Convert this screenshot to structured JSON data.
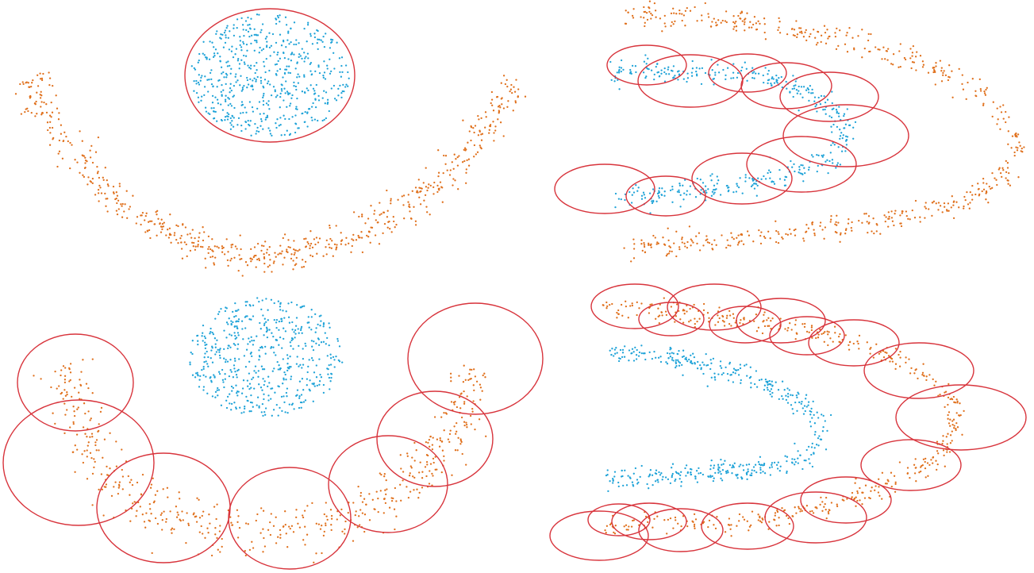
{
  "colors": {
    "cluster_a": "#1fa3d8",
    "cluster_b": "#e0701c",
    "circle": "#d8343c",
    "background": "#ffffff"
  },
  "chart_data": [
    {
      "type": "scatter",
      "series": [
        {
          "color_key": "cluster_a",
          "shape": "disc",
          "center": [
            340,
            95
          ],
          "radius": [
            100,
            78
          ],
          "count": 560
        },
        {
          "color_key": "cluster_b",
          "shape": "arc",
          "path": [
            [
              35,
              100
            ],
            [
              75,
              170
            ],
            [
              140,
              245
            ],
            [
              225,
              300
            ],
            [
              310,
              325
            ],
            [
              400,
              315
            ],
            [
              480,
              285
            ],
            [
              555,
              230
            ],
            [
              610,
              170
            ],
            [
              650,
              100
            ]
          ],
          "spread": 22,
          "count": 620
        }
      ],
      "circles": [
        {
          "center": [
            340,
            95
          ],
          "radius": [
            107,
            84
          ]
        }
      ]
    },
    {
      "type": "scatter",
      "series": [
        {
          "color_key": "cluster_a",
          "shape": "arc",
          "path": [
            [
              770,
              90
            ],
            [
              850,
              90
            ],
            [
              940,
              96
            ],
            [
              1000,
              110
            ],
            [
              1045,
              135
            ],
            [
              1068,
              165
            ],
            [
              1055,
              195
            ],
            [
              1015,
              212
            ],
            [
              960,
              228
            ],
            [
              905,
              236
            ],
            [
              850,
              243
            ],
            [
              775,
              252
            ]
          ],
          "spread": 15,
          "count": 430
        },
        {
          "color_key": "cluster_b",
          "shape": "arc",
          "path": [
            [
              790,
              18
            ],
            [
              930,
              28
            ],
            [
              1060,
              50
            ],
            [
              1170,
              80
            ],
            [
              1245,
              125
            ],
            [
              1285,
              170
            ],
            [
              1270,
              220
            ],
            [
              1220,
              252
            ],
            [
              1130,
              275
            ],
            [
              1020,
              290
            ],
            [
              900,
              305
            ],
            [
              780,
              312
            ]
          ],
          "spread": 15,
          "count": 560
        }
      ],
      "circles": [
        {
          "center": [
            815,
            82
          ],
          "radius": [
            50,
            25
          ]
        },
        {
          "center": [
            870,
            102
          ],
          "radius": [
            66,
            33
          ]
        },
        {
          "center": [
            942,
            92
          ],
          "radius": [
            49,
            24
          ]
        },
        {
          "center": [
            991,
            108
          ],
          "radius": [
            57,
            29
          ]
        },
        {
          "center": [
            1045,
            122
          ],
          "radius": [
            62,
            31
          ]
        },
        {
          "center": [
            1066,
            171
          ],
          "radius": [
            79,
            39
          ]
        },
        {
          "center": [
            1010,
            207
          ],
          "radius": [
            69,
            35
          ]
        },
        {
          "center": [
            935,
            225
          ],
          "radius": [
            63,
            32
          ]
        },
        {
          "center": [
            839,
            247
          ],
          "radius": [
            50,
            25
          ]
        },
        {
          "center": [
            762,
            238
          ],
          "radius": [
            63,
            31
          ]
        }
      ]
    },
    {
      "type": "scatter",
      "series": [
        {
          "color_key": "cluster_a",
          "shape": "disc",
          "center": [
            335,
            450
          ],
          "radius": [
            97,
            75
          ],
          "count": 520
        },
        {
          "color_key": "cluster_b",
          "shape": "arc",
          "path": [
            [
              80,
              460
            ],
            [
              100,
              530
            ],
            [
              130,
              600
            ],
            [
              200,
              650
            ],
            [
              290,
              665
            ],
            [
              380,
              672
            ],
            [
              460,
              650
            ],
            [
              520,
              600
            ],
            [
              575,
              540
            ],
            [
              600,
              465
            ]
          ],
          "spread": 30,
          "count": 520
        }
      ],
      "circles": [
        {
          "center": [
            95,
            482
          ],
          "radius": [
            73,
            61
          ]
        },
        {
          "center": [
            99,
            583
          ],
          "radius": [
            95,
            79
          ]
        },
        {
          "center": [
            206,
            640
          ],
          "radius": [
            84,
            69
          ]
        },
        {
          "center": [
            365,
            653
          ],
          "radius": [
            77,
            64
          ]
        },
        {
          "center": [
            489,
            610
          ],
          "radius": [
            75,
            61
          ]
        },
        {
          "center": [
            548,
            553
          ],
          "radius": [
            73,
            60
          ]
        },
        {
          "center": [
            599,
            452
          ],
          "radius": [
            85,
            70
          ]
        }
      ]
    },
    {
      "type": "scatter",
      "series": [
        {
          "color_key": "cluster_a",
          "shape": "arc",
          "path": [
            [
              765,
              445
            ],
            [
              850,
              452
            ],
            [
              930,
              470
            ],
            [
              985,
              492
            ],
            [
              1025,
              520
            ],
            [
              1035,
              555
            ],
            [
              1010,
              578
            ],
            [
              950,
              590
            ],
            [
              870,
              598
            ],
            [
              765,
              604
            ]
          ],
          "spread": 14,
          "count": 450
        },
        {
          "color_key": "cluster_b",
          "shape": "arc",
          "path": [
            [
              760,
              385
            ],
            [
              850,
              393
            ],
            [
              960,
              405
            ],
            [
              1070,
              428
            ],
            [
              1150,
              462
            ],
            [
              1205,
              515
            ],
            [
              1190,
              575
            ],
            [
              1110,
              615
            ],
            [
              1030,
              642
            ],
            [
              930,
              660
            ],
            [
              840,
              656
            ],
            [
              760,
              662
            ]
          ],
          "spread": 14,
          "count": 520
        }
      ],
      "circles": [
        {
          "center": [
            800,
            386
          ],
          "radius": [
            55,
            28
          ]
        },
        {
          "center": [
            846,
            402
          ],
          "radius": [
            41,
            21
          ]
        },
        {
          "center": [
            900,
            387
          ],
          "radius": [
            59,
            29
          ]
        },
        {
          "center": [
            939,
            409
          ],
          "radius": [
            45,
            23
          ]
        },
        {
          "center": [
            984,
            404
          ],
          "radius": [
            56,
            28
          ]
        },
        {
          "center": [
            1017,
            423
          ],
          "radius": [
            47,
            24
          ]
        },
        {
          "center": [
            1076,
            432
          ],
          "radius": [
            57,
            29
          ]
        },
        {
          "center": [
            1158,
            467
          ],
          "radius": [
            69,
            35
          ]
        },
        {
          "center": [
            1211,
            526
          ],
          "radius": [
            82,
            41
          ]
        },
        {
          "center": [
            1148,
            586
          ],
          "radius": [
            63,
            32
          ]
        },
        {
          "center": [
            1066,
            630
          ],
          "radius": [
            57,
            29
          ]
        },
        {
          "center": [
            1028,
            652
          ],
          "radius": [
            64,
            32
          ]
        },
        {
          "center": [
            942,
            663
          ],
          "radius": [
            58,
            29
          ]
        },
        {
          "center": [
            858,
            668
          ],
          "radius": [
            53,
            27
          ]
        },
        {
          "center": [
            818,
            657
          ],
          "radius": [
            47,
            23
          ]
        },
        {
          "center": [
            780,
            655
          ],
          "radius": [
            39,
            20
          ]
        },
        {
          "center": [
            755,
            675
          ],
          "radius": [
            62,
            31
          ]
        }
      ]
    }
  ]
}
